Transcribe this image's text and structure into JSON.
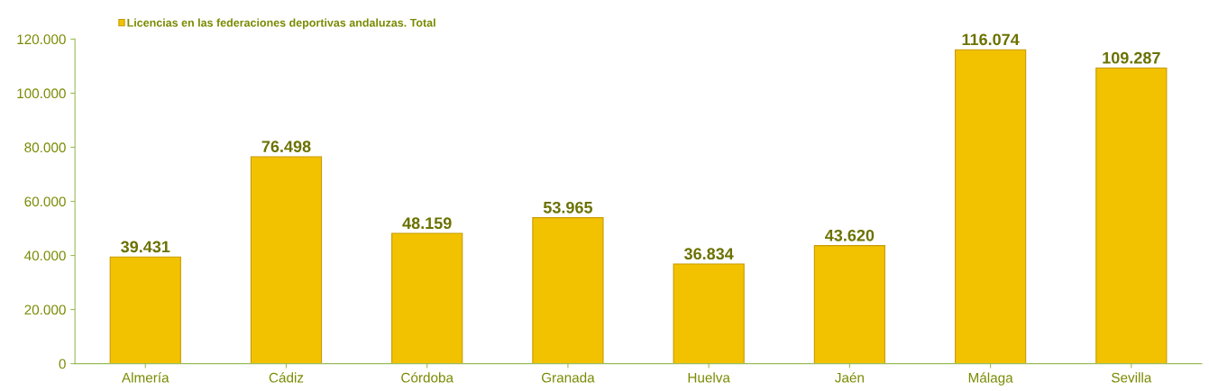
{
  "chart_data": {
    "type": "bar",
    "categories": [
      "Almería",
      "Cádiz",
      "Córdoba",
      "Granada",
      "Huelva",
      "Jaén",
      "Málaga",
      "Sevilla"
    ],
    "series": [
      {
        "name": "Licencias en las federaciones deportivas andaluzas. Total",
        "color": "#f2c200",
        "values": [
          39431,
          76498,
          48159,
          53965,
          36834,
          43620,
          116074,
          109287
        ],
        "value_labels": [
          "39.431",
          "76.498",
          "48.159",
          "53.965",
          "36.834",
          "43.620",
          "116.074",
          "109.287"
        ]
      }
    ],
    "ylim": [
      0,
      120000
    ],
    "yticks": [
      {
        "value": 0,
        "label": "0"
      },
      {
        "value": 20000,
        "label": "20.000"
      },
      {
        "value": 40000,
        "label": "40.000"
      },
      {
        "value": 60000,
        "label": "60.000"
      },
      {
        "value": 80000,
        "label": "80.000"
      },
      {
        "value": 100000,
        "label": "100.000"
      },
      {
        "value": 120000,
        "label": "120.000"
      }
    ],
    "grid": false,
    "legend": "top left"
  }
}
